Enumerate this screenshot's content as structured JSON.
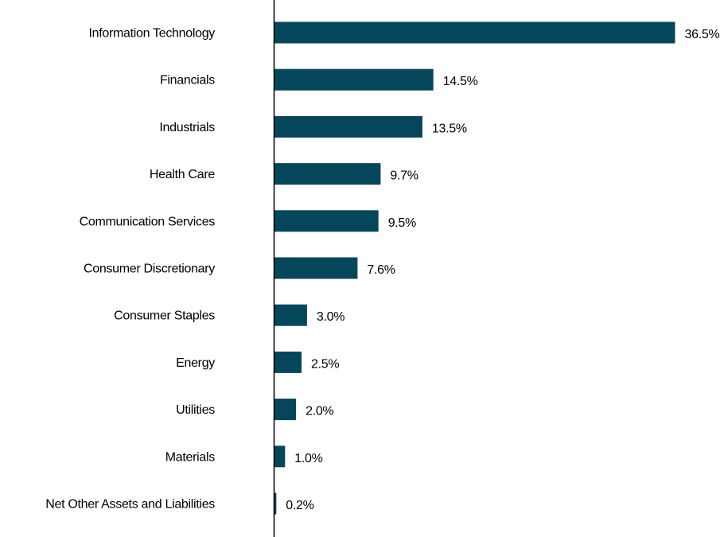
{
  "chart_data": {
    "type": "bar",
    "orientation": "horizontal",
    "title": "",
    "xlabel": "",
    "ylabel": "",
    "categories": [
      "Information Technology",
      "Financials",
      "Industrials",
      "Health Care",
      "Communication Services",
      "Consumer Discretionary",
      "Consumer Staples",
      "Energy",
      "Utilities",
      "Materials",
      "Net Other Assets and Liabilities"
    ],
    "values": [
      36.5,
      14.5,
      13.5,
      9.7,
      9.5,
      7.6,
      3.0,
      2.5,
      2.0,
      1.0,
      0.2
    ],
    "value_labels": [
      "36.5%",
      "14.5%",
      "13.5%",
      "9.7%",
      "9.5%",
      "7.6%",
      "3.0%",
      "2.5%",
      "2.0%",
      "1.0%",
      "0.2%"
    ],
    "xlim": [
      0,
      36.5
    ],
    "grid": false,
    "legend": "none",
    "bar_color": "#06465a"
  }
}
